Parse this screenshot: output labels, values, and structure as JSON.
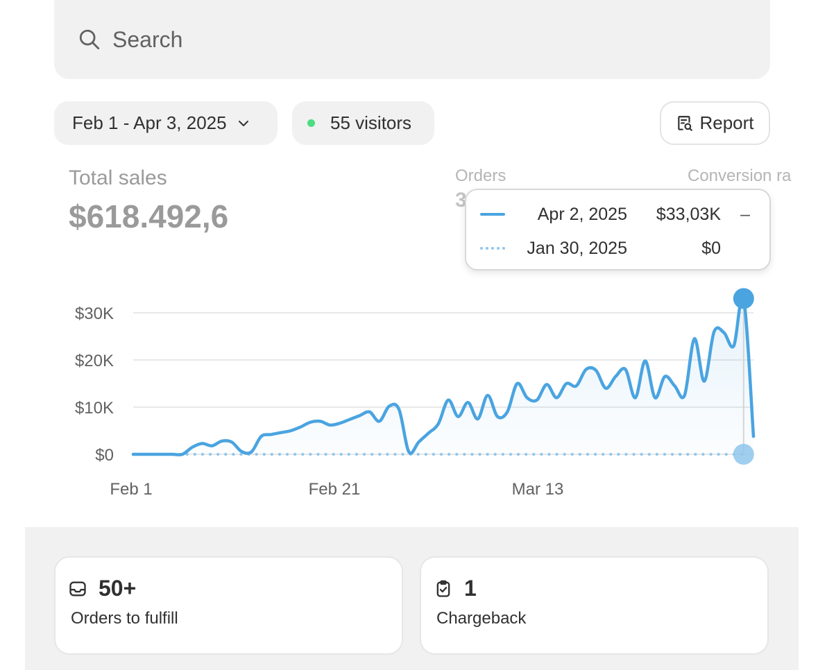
{
  "search": {
    "placeholder": "Search",
    "icon": "search-icon"
  },
  "filters": {
    "date_range": "Feb 1 - Apr 3, 2025",
    "visitors": "55 visitors",
    "visitors_dot_color": "#4ade80",
    "report_label": "Report"
  },
  "metrics": {
    "total_sales_label": "Total sales",
    "total_sales_value": "$618.492,6",
    "orders_label": "Orders",
    "orders_value_peek": "3",
    "conversion_label": "Conversion ra"
  },
  "tooltip": {
    "rows": [
      {
        "date": "Apr 2, 2025",
        "value": "$33,03K",
        "trend": "–"
      },
      {
        "date": "Jan 30, 2025",
        "value": "$0",
        "trend": ""
      }
    ]
  },
  "chart_data": {
    "type": "line",
    "x_tick_labels": [
      "Feb 1",
      "Feb 21",
      "Mar 13"
    ],
    "y_tick_labels": [
      "$0",
      "$10K",
      "$20K",
      "$30K"
    ],
    "ylim": [
      0,
      30000
    ],
    "grid": true,
    "colors": {
      "current": "#4aa4e0",
      "comparison": "#8fc6ec"
    },
    "series": [
      {
        "style": "solid",
        "values": [
          0,
          0,
          0,
          0,
          0,
          0,
          1500,
          2300,
          1800,
          2800,
          2600,
          600,
          500,
          3800,
          4200,
          4600,
          5000,
          5800,
          6800,
          7000,
          6200,
          6600,
          7400,
          8200,
          9000,
          7000,
          10200,
          9500,
          500,
          2600,
          4500,
          6500,
          11500,
          8000,
          11000,
          7500,
          12500,
          8000,
          9000,
          15000,
          12000,
          11500,
          14800,
          12000,
          15000,
          14500,
          18000,
          17800,
          14000,
          16500,
          18000,
          12000,
          19800,
          12000,
          16500,
          14500,
          12500,
          24500,
          15500,
          26000,
          25800,
          23000,
          33030,
          3800
        ]
      },
      {
        "style": "dotted",
        "values": [
          0,
          0,
          0,
          0,
          0,
          0,
          0,
          0,
          0,
          0,
          0,
          0,
          0,
          0,
          0,
          0,
          0,
          0,
          0,
          0,
          0,
          0,
          0,
          0,
          0,
          0,
          0,
          0,
          0,
          0,
          0,
          0,
          0,
          0,
          0,
          0,
          0,
          0,
          0,
          0,
          0,
          0,
          0,
          0,
          0,
          0,
          0,
          0,
          0,
          0,
          0,
          0,
          0,
          0,
          0,
          0,
          0,
          0,
          0,
          0,
          0,
          0,
          0
        ]
      }
    ]
  },
  "summary_cards": [
    {
      "icon": "inbox-icon",
      "value": "50+",
      "label": "Orders to fulfill"
    },
    {
      "icon": "clipboard-check-icon",
      "value": "1",
      "label": "Chargeback"
    }
  ]
}
